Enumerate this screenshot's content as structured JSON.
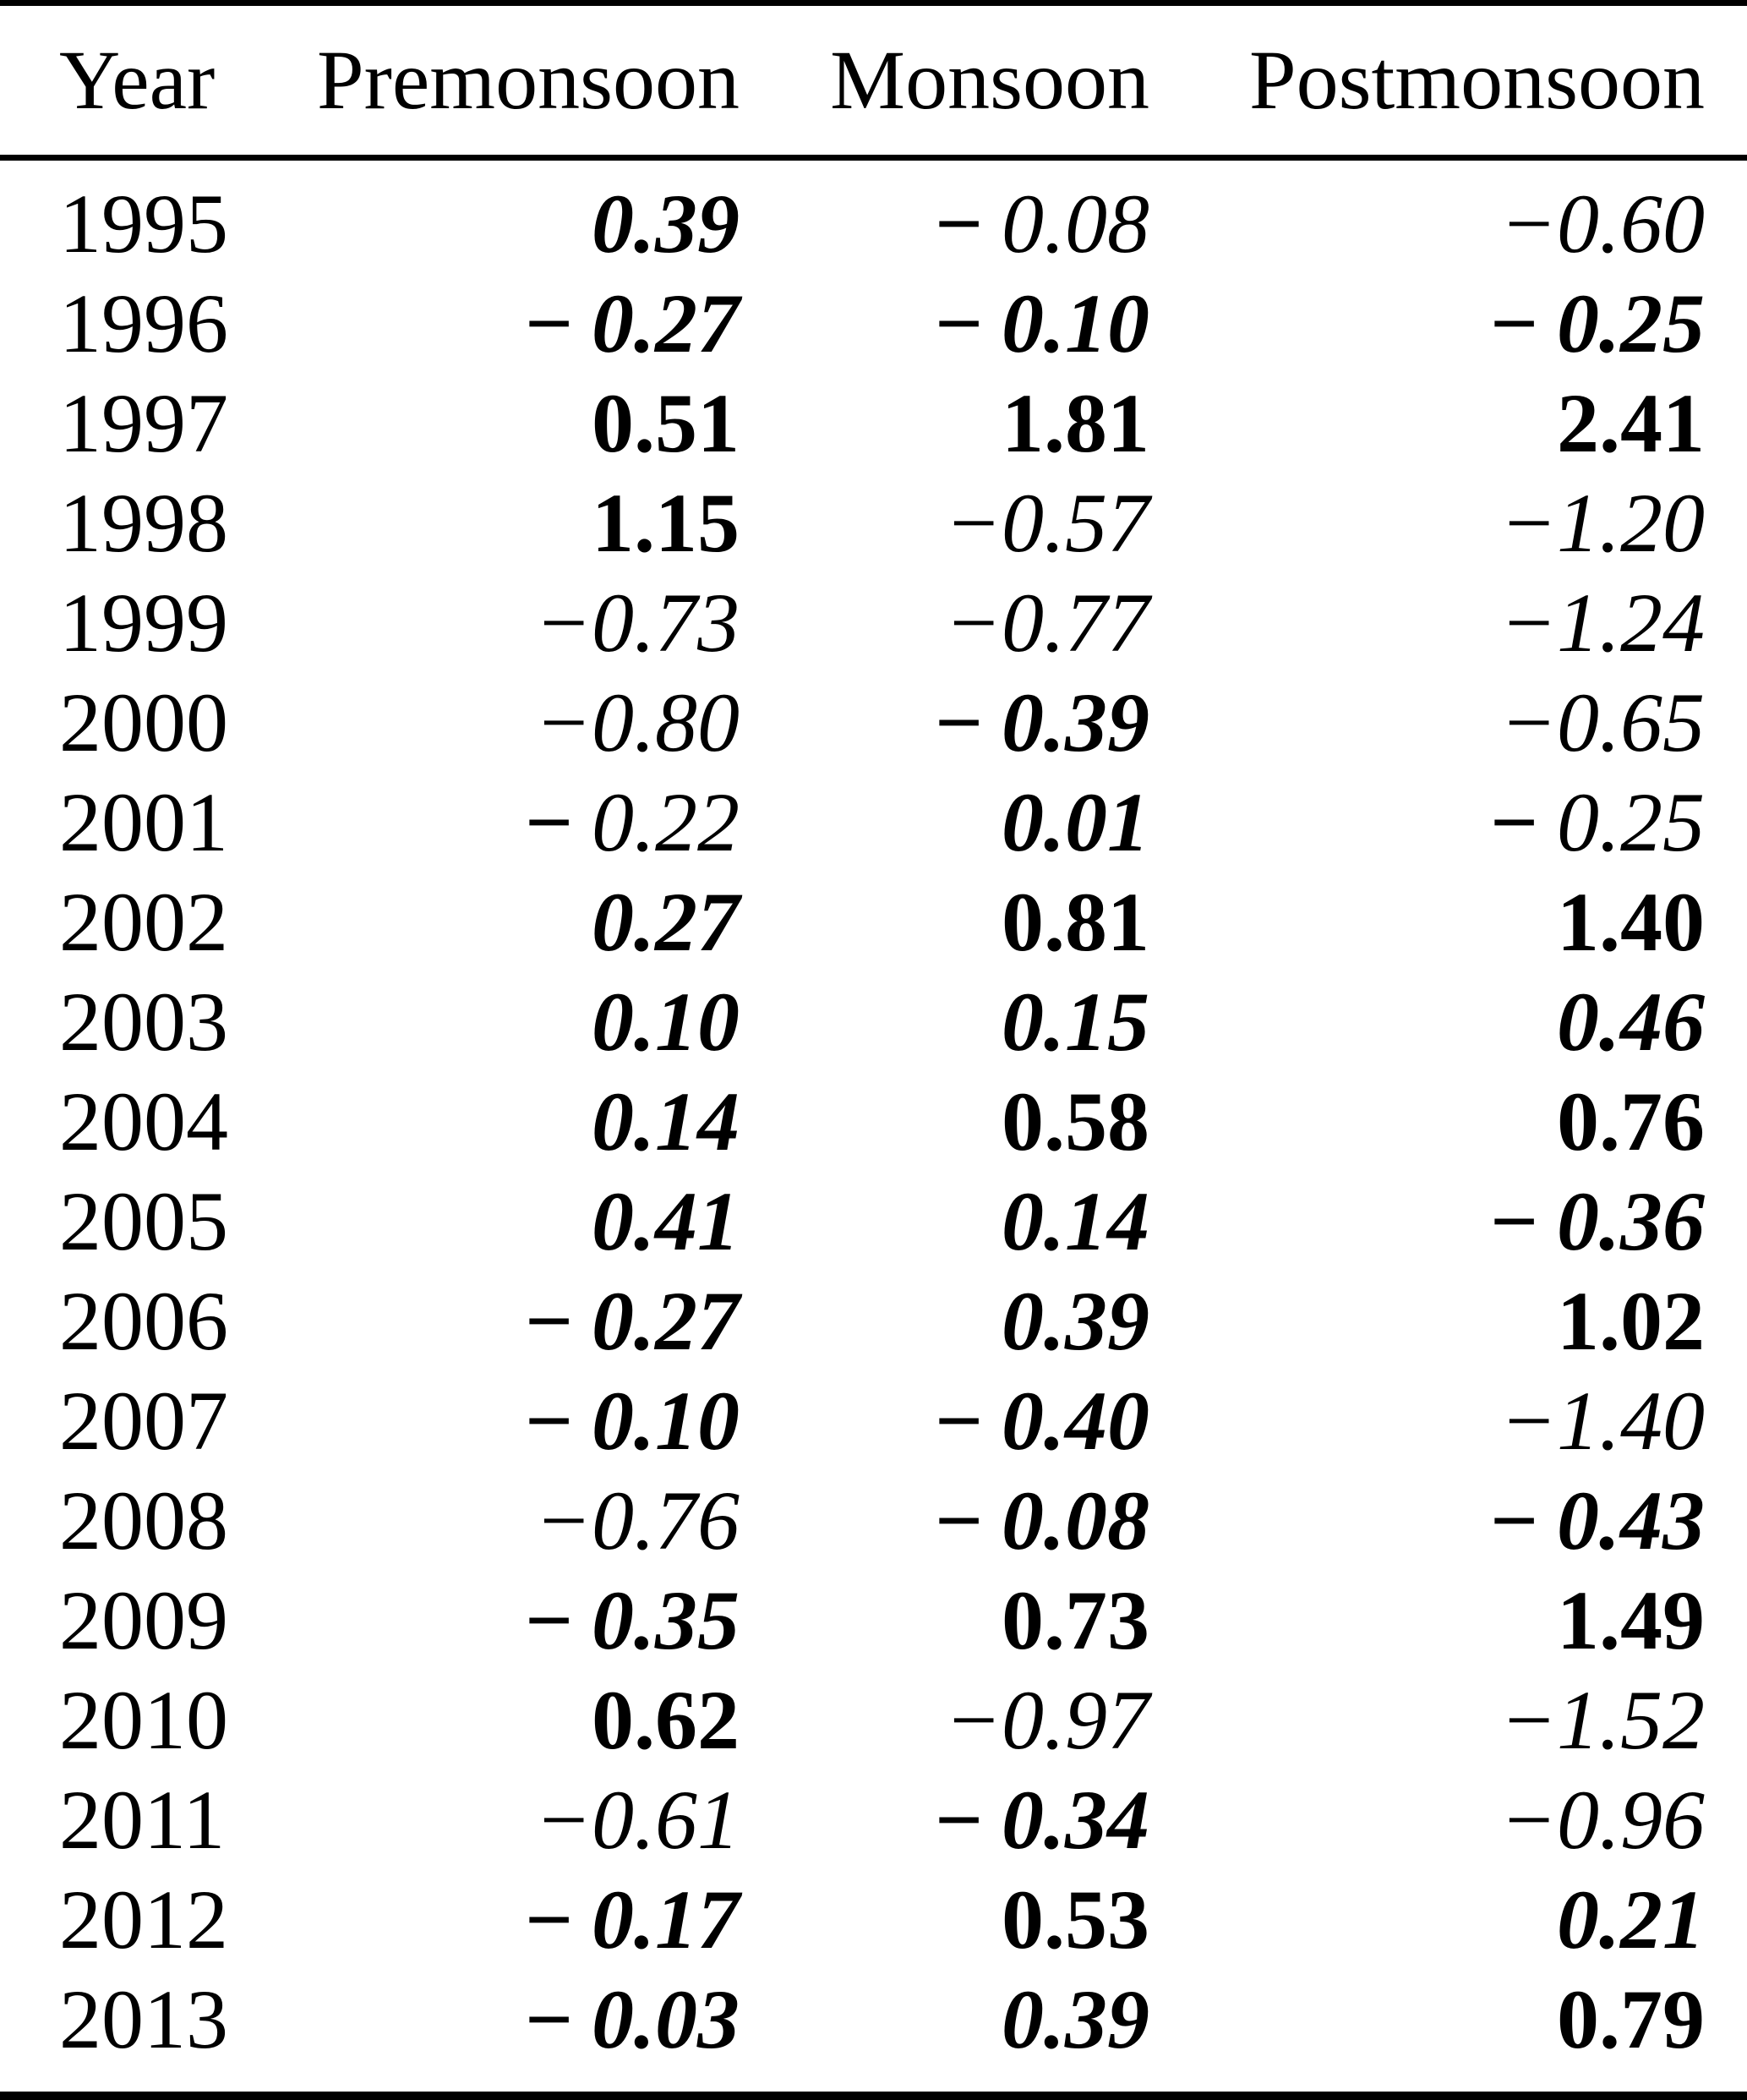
{
  "page": {
    "background": "#ffffff",
    "text_color": "#000000"
  },
  "table": {
    "columns": [
      {
        "key": "year",
        "label": "Year"
      },
      {
        "key": "premonsoon",
        "label": "Premonsoon"
      },
      {
        "key": "monsoon",
        "label": "Monsoon"
      },
      {
        "key": "postmonsoon",
        "label": "Postmonsoon"
      }
    ],
    "value_styles": {
      "bold": "bold upright number",
      "bold-italic": "bold italic number (bold upright minus sign when negative)",
      "italic": "regular italic number with attached minus sign",
      "boldminus-italic": "bold upright minus sign followed by regular italic number"
    },
    "rows": [
      {
        "year": "1995",
        "values": [
          {
            "t": "0.39",
            "s": "bold-italic"
          },
          {
            "t": "−0.08",
            "s": "boldminus-italic"
          },
          {
            "t": "−0.60",
            "s": "italic"
          }
        ]
      },
      {
        "year": "1996",
        "values": [
          {
            "t": "−0.27",
            "s": "bold-italic"
          },
          {
            "t": "−0.10",
            "s": "bold-italic"
          },
          {
            "t": "−0.25",
            "s": "bold-italic"
          }
        ]
      },
      {
        "year": "1997",
        "values": [
          {
            "t": "0.51",
            "s": "bold"
          },
          {
            "t": "1.81",
            "s": "bold"
          },
          {
            "t": "2.41",
            "s": "bold"
          }
        ]
      },
      {
        "year": "1998",
        "values": [
          {
            "t": "1.15",
            "s": "bold"
          },
          {
            "t": "−0.57",
            "s": "italic"
          },
          {
            "t": "−1.20",
            "s": "italic"
          }
        ]
      },
      {
        "year": "1999",
        "values": [
          {
            "t": "−0.73",
            "s": "italic"
          },
          {
            "t": "−0.77",
            "s": "italic"
          },
          {
            "t": "−1.24",
            "s": "italic"
          }
        ]
      },
      {
        "year": "2000",
        "values": [
          {
            "t": "−0.80",
            "s": "italic"
          },
          {
            "t": "−0.39",
            "s": "bold-italic"
          },
          {
            "t": "−0.65",
            "s": "italic"
          }
        ]
      },
      {
        "year": "2001",
        "values": [
          {
            "t": "−0.22",
            "s": "boldminus-italic"
          },
          {
            "t": "0.01",
            "s": "bold-italic"
          },
          {
            "t": "−0.25",
            "s": "boldminus-italic"
          }
        ]
      },
      {
        "year": "2002",
        "values": [
          {
            "t": "0.27",
            "s": "bold-italic"
          },
          {
            "t": "0.81",
            "s": "bold"
          },
          {
            "t": "1.40",
            "s": "bold"
          }
        ]
      },
      {
        "year": "2003",
        "values": [
          {
            "t": "0.10",
            "s": "bold-italic"
          },
          {
            "t": "0.15",
            "s": "bold-italic"
          },
          {
            "t": "0.46",
            "s": "bold-italic"
          }
        ]
      },
      {
        "year": "2004",
        "values": [
          {
            "t": "0.14",
            "s": "bold-italic"
          },
          {
            "t": "0.58",
            "s": "bold"
          },
          {
            "t": "0.76",
            "s": "bold"
          }
        ]
      },
      {
        "year": "2005",
        "values": [
          {
            "t": "0.41",
            "s": "bold-italic"
          },
          {
            "t": "0.14",
            "s": "bold-italic"
          },
          {
            "t": "−0.36",
            "s": "bold-italic"
          }
        ]
      },
      {
        "year": "2006",
        "values": [
          {
            "t": "−0.27",
            "s": "bold-italic"
          },
          {
            "t": "0.39",
            "s": "bold-italic"
          },
          {
            "t": "1.02",
            "s": "bold"
          }
        ]
      },
      {
        "year": "2007",
        "values": [
          {
            "t": "−0.10",
            "s": "bold-italic"
          },
          {
            "t": "−0.40",
            "s": "bold-italic"
          },
          {
            "t": "−1.40",
            "s": "italic"
          }
        ]
      },
      {
        "year": "2008",
        "values": [
          {
            "t": "−0.76",
            "s": "italic"
          },
          {
            "t": "−0.08",
            "s": "bold-italic"
          },
          {
            "t": "−0.43",
            "s": "bold-italic"
          }
        ]
      },
      {
        "year": "2009",
        "values": [
          {
            "t": "−0.35",
            "s": "bold-italic"
          },
          {
            "t": "0.73",
            "s": "bold"
          },
          {
            "t": "1.49",
            "s": "bold"
          }
        ]
      },
      {
        "year": "2010",
        "values": [
          {
            "t": "0.62",
            "s": "bold"
          },
          {
            "t": "−0.97",
            "s": "italic"
          },
          {
            "t": "−1.52",
            "s": "italic"
          }
        ]
      },
      {
        "year": "2011",
        "values": [
          {
            "t": "−0.61",
            "s": "italic"
          },
          {
            "t": "−0.34",
            "s": "bold-italic"
          },
          {
            "t": "−0.96",
            "s": "italic"
          }
        ]
      },
      {
        "year": "2012",
        "values": [
          {
            "t": "−0.17",
            "s": "bold-italic"
          },
          {
            "t": "0.53",
            "s": "bold"
          },
          {
            "t": "0.21",
            "s": "bold-italic"
          }
        ]
      },
      {
        "year": "2013",
        "values": [
          {
            "t": "−0.03",
            "s": "bold-italic"
          },
          {
            "t": "0.39",
            "s": "bold-italic"
          },
          {
            "t": "0.79",
            "s": "bold"
          }
        ]
      }
    ]
  }
}
